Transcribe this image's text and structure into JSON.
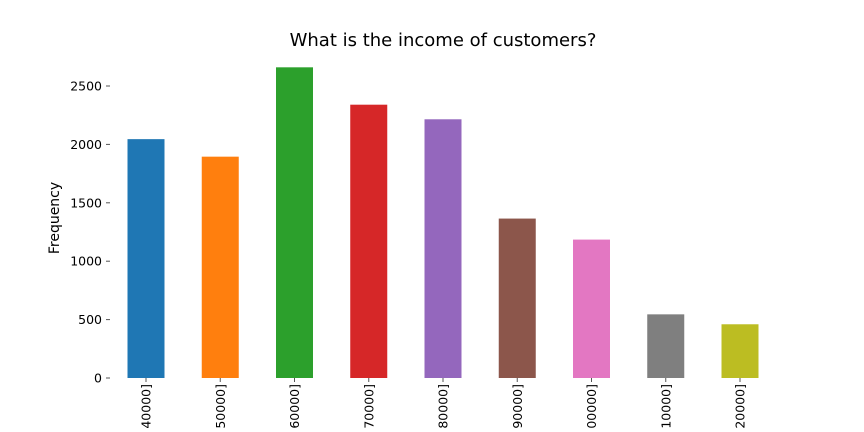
{
  "chart_data": {
    "type": "bar",
    "title": "What is the income of customers?",
    "xlabel": "",
    "ylabel": "Frequency",
    "ylim": [
      0,
      2650
    ],
    "yticks": [
      0,
      500,
      1000,
      1500,
      2000,
      2500
    ],
    "grid": false,
    "categories": [
      "40000]",
      "50000]",
      "60000]",
      "70000]",
      "80000]",
      "90000]",
      "00000]",
      "10000]",
      "20000]"
    ],
    "values": [
      2045,
      1895,
      2660,
      2340,
      2215,
      1365,
      1185,
      545,
      460
    ],
    "colors": [
      "#1f77b4",
      "#ff7f0e",
      "#2ca02c",
      "#d62728",
      "#9467bd",
      "#8c564b",
      "#e377c2",
      "#7f7f7f",
      "#bcbd22"
    ]
  }
}
